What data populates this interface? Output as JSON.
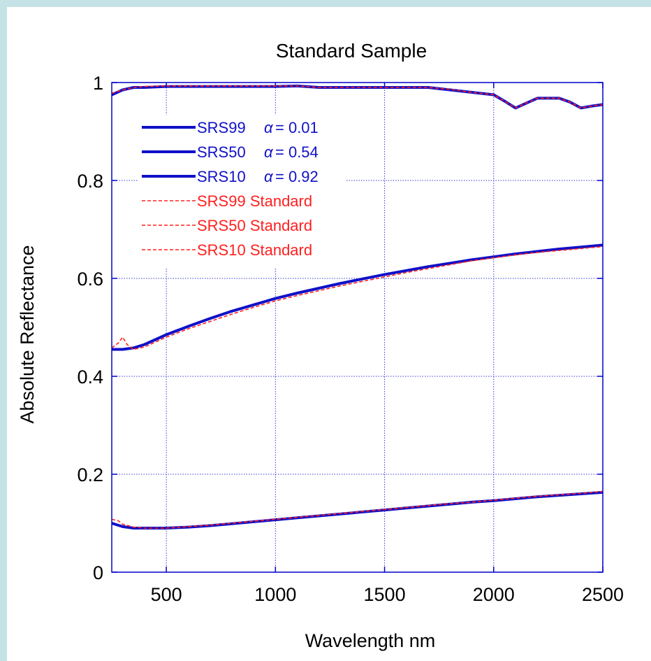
{
  "chart_data": {
    "type": "line",
    "title": "Standard Sample",
    "xlabel": "Wavelength nm",
    "ylabel": "Absolute Reflectance",
    "xlim": [
      250,
      2500
    ],
    "ylim": [
      0,
      1
    ],
    "x_ticks": [
      500,
      1000,
      1500,
      2000,
      2500
    ],
    "y_ticks": [
      0,
      0.2,
      0.4,
      0.6,
      0.8,
      1
    ],
    "x_tick_labels": [
      "500",
      "1000",
      "1500",
      "2000",
      "2500"
    ],
    "y_tick_labels": [
      "0",
      "0.2",
      "0.4",
      "0.6",
      "0.8",
      "1"
    ],
    "grid": true,
    "legend_position": "top-left",
    "series": [
      {
        "name": "SRS99",
        "alpha_label": "α",
        "alpha_text": "= 0.01",
        "style": "solid",
        "color": "#1010c8",
        "x": [
          250,
          300,
          350,
          400,
          500,
          600,
          700,
          800,
          900,
          1000,
          1100,
          1200,
          1300,
          1400,
          1500,
          1600,
          1700,
          1800,
          1900,
          2000,
          2050,
          2100,
          2150,
          2200,
          2250,
          2300,
          2350,
          2400,
          2450,
          2500
        ],
        "y": [
          0.975,
          0.985,
          0.99,
          0.99,
          0.992,
          0.992,
          0.992,
          0.992,
          0.992,
          0.992,
          0.993,
          0.99,
          0.99,
          0.99,
          0.99,
          0.99,
          0.99,
          0.985,
          0.98,
          0.975,
          0.962,
          0.948,
          0.958,
          0.968,
          0.968,
          0.968,
          0.96,
          0.948,
          0.952,
          0.955
        ]
      },
      {
        "name": "SRS50",
        "alpha_label": "α",
        "alpha_text": "= 0.54",
        "style": "solid",
        "color": "#1010c8",
        "x": [
          250,
          300,
          350,
          400,
          500,
          600,
          700,
          800,
          900,
          1000,
          1100,
          1200,
          1300,
          1400,
          1500,
          1600,
          1700,
          1800,
          1900,
          2000,
          2100,
          2200,
          2300,
          2400,
          2500
        ],
        "y": [
          0.455,
          0.455,
          0.458,
          0.465,
          0.485,
          0.502,
          0.518,
          0.533,
          0.546,
          0.559,
          0.57,
          0.58,
          0.59,
          0.599,
          0.608,
          0.616,
          0.624,
          0.631,
          0.638,
          0.644,
          0.65,
          0.655,
          0.66,
          0.664,
          0.668
        ]
      },
      {
        "name": "SRS10",
        "alpha_label": "α",
        "alpha_text": "= 0.92",
        "style": "solid",
        "color": "#1010c8",
        "x": [
          250,
          300,
          350,
          400,
          500,
          600,
          700,
          800,
          900,
          1000,
          1100,
          1200,
          1300,
          1400,
          1500,
          1600,
          1700,
          1800,
          1900,
          2000,
          2100,
          2200,
          2300,
          2400,
          2500
        ],
        "y": [
          0.1,
          0.093,
          0.09,
          0.09,
          0.09,
          0.092,
          0.095,
          0.099,
          0.103,
          0.107,
          0.111,
          0.115,
          0.119,
          0.123,
          0.127,
          0.131,
          0.135,
          0.139,
          0.143,
          0.146,
          0.15,
          0.154,
          0.157,
          0.16,
          0.163
        ]
      },
      {
        "name": "SRS99 Standard",
        "style": "dashed",
        "color": "#ff2020",
        "x": [
          250,
          300,
          350,
          400,
          500,
          600,
          700,
          800,
          900,
          1000,
          1100,
          1200,
          1300,
          1400,
          1500,
          1600,
          1700,
          1800,
          1900,
          2000,
          2050,
          2100,
          2150,
          2200,
          2250,
          2300,
          2350,
          2400,
          2450,
          2500
        ],
        "y": [
          0.978,
          0.985,
          0.99,
          0.992,
          0.993,
          0.993,
          0.993,
          0.993,
          0.993,
          0.993,
          0.993,
          0.99,
          0.99,
          0.99,
          0.99,
          0.99,
          0.99,
          0.986,
          0.98,
          0.975,
          0.962,
          0.948,
          0.958,
          0.968,
          0.968,
          0.968,
          0.96,
          0.948,
          0.952,
          0.955
        ]
      },
      {
        "name": "SRS50 Standard",
        "style": "dashed",
        "color": "#ff2020",
        "x": [
          250,
          280,
          300,
          320,
          350,
          400,
          500,
          600,
          700,
          800,
          900,
          1000,
          1100,
          1200,
          1300,
          1400,
          1500,
          1600,
          1700,
          1800,
          1900,
          2000,
          2100,
          2200,
          2300,
          2400,
          2500
        ],
        "y": [
          0.458,
          0.468,
          0.48,
          0.465,
          0.455,
          0.46,
          0.48,
          0.497,
          0.512,
          0.527,
          0.541,
          0.554,
          0.565,
          0.575,
          0.585,
          0.594,
          0.603,
          0.612,
          0.62,
          0.628,
          0.636,
          0.642,
          0.648,
          0.653,
          0.657,
          0.661,
          0.665
        ]
      },
      {
        "name": "SRS10 Standard",
        "style": "dashed",
        "color": "#ff2020",
        "x": [
          250,
          280,
          300,
          350,
          400,
          500,
          600,
          700,
          800,
          900,
          1000,
          1100,
          1200,
          1300,
          1400,
          1500,
          1600,
          1700,
          1800,
          1900,
          2000,
          2100,
          2200,
          2300,
          2400,
          2500
        ],
        "y": [
          0.108,
          0.105,
          0.098,
          0.092,
          0.09,
          0.09,
          0.093,
          0.096,
          0.1,
          0.104,
          0.108,
          0.112,
          0.116,
          0.12,
          0.124,
          0.128,
          0.132,
          0.136,
          0.14,
          0.143,
          0.147,
          0.151,
          0.155,
          0.158,
          0.161,
          0.165
        ]
      }
    ]
  }
}
